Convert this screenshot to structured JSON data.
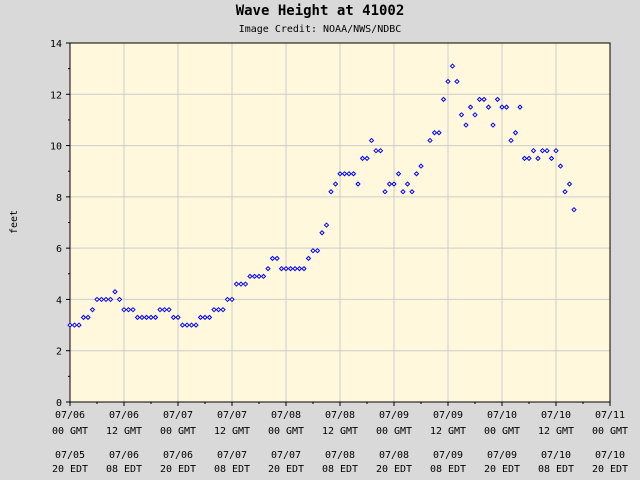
{
  "page": {
    "title": "Wave Height at 41002",
    "credit": "Image Credit: NOAA/NWS/NDBC"
  },
  "chart_data": {
    "type": "scatter",
    "title": "Wave Height at 41002",
    "subtitle": "Image Credit: NOAA/NWS/NDBC",
    "ylabel": "feet",
    "xlabel": "",
    "ylim": [
      0,
      14
    ],
    "yticks": [
      0,
      2,
      4,
      6,
      8,
      10,
      12,
      14
    ],
    "xlim_hours": [
      0,
      120
    ],
    "grid": true,
    "colors": {
      "background": "#fff8dc",
      "grid": "#cccccc",
      "marker": "#0000ff",
      "frame": "#d9d9d9"
    },
    "x_ticks": [
      {
        "hour": 0,
        "gmt_date": "07/06",
        "gmt_time": "00 GMT",
        "edt_date": "07/05",
        "edt_time": "20 EDT"
      },
      {
        "hour": 12,
        "gmt_date": "07/06",
        "gmt_time": "12 GMT",
        "edt_date": "07/06",
        "edt_time": "08 EDT"
      },
      {
        "hour": 24,
        "gmt_date": "07/07",
        "gmt_time": "00 GMT",
        "edt_date": "07/06",
        "edt_time": "20 EDT"
      },
      {
        "hour": 36,
        "gmt_date": "07/07",
        "gmt_time": "12 GMT",
        "edt_date": "07/07",
        "edt_time": "08 EDT"
      },
      {
        "hour": 48,
        "gmt_date": "07/08",
        "gmt_time": "00 GMT",
        "edt_date": "07/07",
        "edt_time": "20 EDT"
      },
      {
        "hour": 60,
        "gmt_date": "07/08",
        "gmt_time": "12 GMT",
        "edt_date": "07/08",
        "edt_time": "08 EDT"
      },
      {
        "hour": 72,
        "gmt_date": "07/09",
        "gmt_time": "00 GMT",
        "edt_date": "07/08",
        "edt_time": "20 EDT"
      },
      {
        "hour": 84,
        "gmt_date": "07/09",
        "gmt_time": "12 GMT",
        "edt_date": "07/09",
        "edt_time": "08 EDT"
      },
      {
        "hour": 96,
        "gmt_date": "07/10",
        "gmt_time": "00 GMT",
        "edt_date": "07/09",
        "edt_time": "20 EDT"
      },
      {
        "hour": 108,
        "gmt_date": "07/10",
        "gmt_time": "12 GMT",
        "edt_date": "07/10",
        "edt_time": "08 EDT"
      },
      {
        "hour": 120,
        "gmt_date": "07/11",
        "gmt_time": "00 GMT",
        "edt_date": "07/10",
        "edt_time": "20 EDT"
      }
    ],
    "series": [
      {
        "points": [
          [
            0,
            3.0
          ],
          [
            1,
            3.0
          ],
          [
            2,
            3.0
          ],
          [
            3,
            3.3
          ],
          [
            4,
            3.3
          ],
          [
            5,
            3.6
          ],
          [
            6,
            4.0
          ],
          [
            7,
            4.0
          ],
          [
            8,
            4.0
          ],
          [
            9,
            4.0
          ],
          [
            10,
            4.3
          ],
          [
            11,
            4.0
          ],
          [
            12,
            3.6
          ],
          [
            13,
            3.6
          ],
          [
            14,
            3.6
          ],
          [
            15,
            3.3
          ],
          [
            16,
            3.3
          ],
          [
            17,
            3.3
          ],
          [
            18,
            3.3
          ],
          [
            19,
            3.3
          ],
          [
            20,
            3.6
          ],
          [
            21,
            3.6
          ],
          [
            22,
            3.6
          ],
          [
            23,
            3.3
          ],
          [
            24,
            3.3
          ],
          [
            25,
            3.0
          ],
          [
            26,
            3.0
          ],
          [
            27,
            3.0
          ],
          [
            28,
            3.0
          ],
          [
            29,
            3.3
          ],
          [
            30,
            3.3
          ],
          [
            31,
            3.3
          ],
          [
            32,
            3.6
          ],
          [
            33,
            3.6
          ],
          [
            34,
            3.6
          ],
          [
            35,
            4.0
          ],
          [
            36,
            4.0
          ],
          [
            37,
            4.6
          ],
          [
            38,
            4.6
          ],
          [
            39,
            4.6
          ],
          [
            40,
            4.9
          ],
          [
            41,
            4.9
          ],
          [
            42,
            4.9
          ],
          [
            43,
            4.9
          ],
          [
            44,
            5.2
          ],
          [
            45,
            5.6
          ],
          [
            46,
            5.6
          ],
          [
            47,
            5.2
          ],
          [
            48,
            5.2
          ],
          [
            49,
            5.2
          ],
          [
            50,
            5.2
          ],
          [
            51,
            5.2
          ],
          [
            52,
            5.2
          ],
          [
            53,
            5.6
          ],
          [
            54,
            5.9
          ],
          [
            55,
            5.9
          ],
          [
            56,
            6.6
          ],
          [
            57,
            6.9
          ],
          [
            58,
            8.2
          ],
          [
            59,
            8.5
          ],
          [
            60,
            8.9
          ],
          [
            61,
            8.9
          ],
          [
            62,
            8.9
          ],
          [
            63,
            8.9
          ],
          [
            64,
            8.5
          ],
          [
            65,
            9.5
          ],
          [
            66,
            9.5
          ],
          [
            67,
            10.2
          ],
          [
            68,
            9.8
          ],
          [
            69,
            9.8
          ],
          [
            70,
            8.2
          ],
          [
            71,
            8.5
          ],
          [
            72,
            8.5
          ],
          [
            73,
            8.9
          ],
          [
            74,
            8.2
          ],
          [
            75,
            8.5
          ],
          [
            76,
            8.2
          ],
          [
            77,
            8.9
          ],
          [
            78,
            9.2
          ],
          [
            80,
            10.2
          ],
          [
            81,
            10.5
          ],
          [
            82,
            10.5
          ],
          [
            83,
            11.8
          ],
          [
            84,
            12.5
          ],
          [
            85,
            13.1
          ],
          [
            86,
            12.5
          ],
          [
            87,
            11.2
          ],
          [
            88,
            10.8
          ],
          [
            89,
            11.5
          ],
          [
            90,
            11.2
          ],
          [
            91,
            11.8
          ],
          [
            92,
            11.8
          ],
          [
            93,
            11.5
          ],
          [
            94,
            10.8
          ],
          [
            95,
            11.8
          ],
          [
            96,
            11.5
          ],
          [
            97,
            11.5
          ],
          [
            98,
            10.2
          ],
          [
            99,
            10.5
          ],
          [
            100,
            11.5
          ],
          [
            101,
            9.5
          ],
          [
            102,
            9.5
          ],
          [
            103,
            9.8
          ],
          [
            104,
            9.5
          ],
          [
            105,
            9.8
          ],
          [
            106,
            9.8
          ],
          [
            107,
            9.5
          ],
          [
            108,
            9.8
          ],
          [
            109,
            9.2
          ],
          [
            110,
            8.2
          ],
          [
            111,
            8.5
          ],
          [
            112,
            7.5
          ]
        ]
      }
    ]
  }
}
